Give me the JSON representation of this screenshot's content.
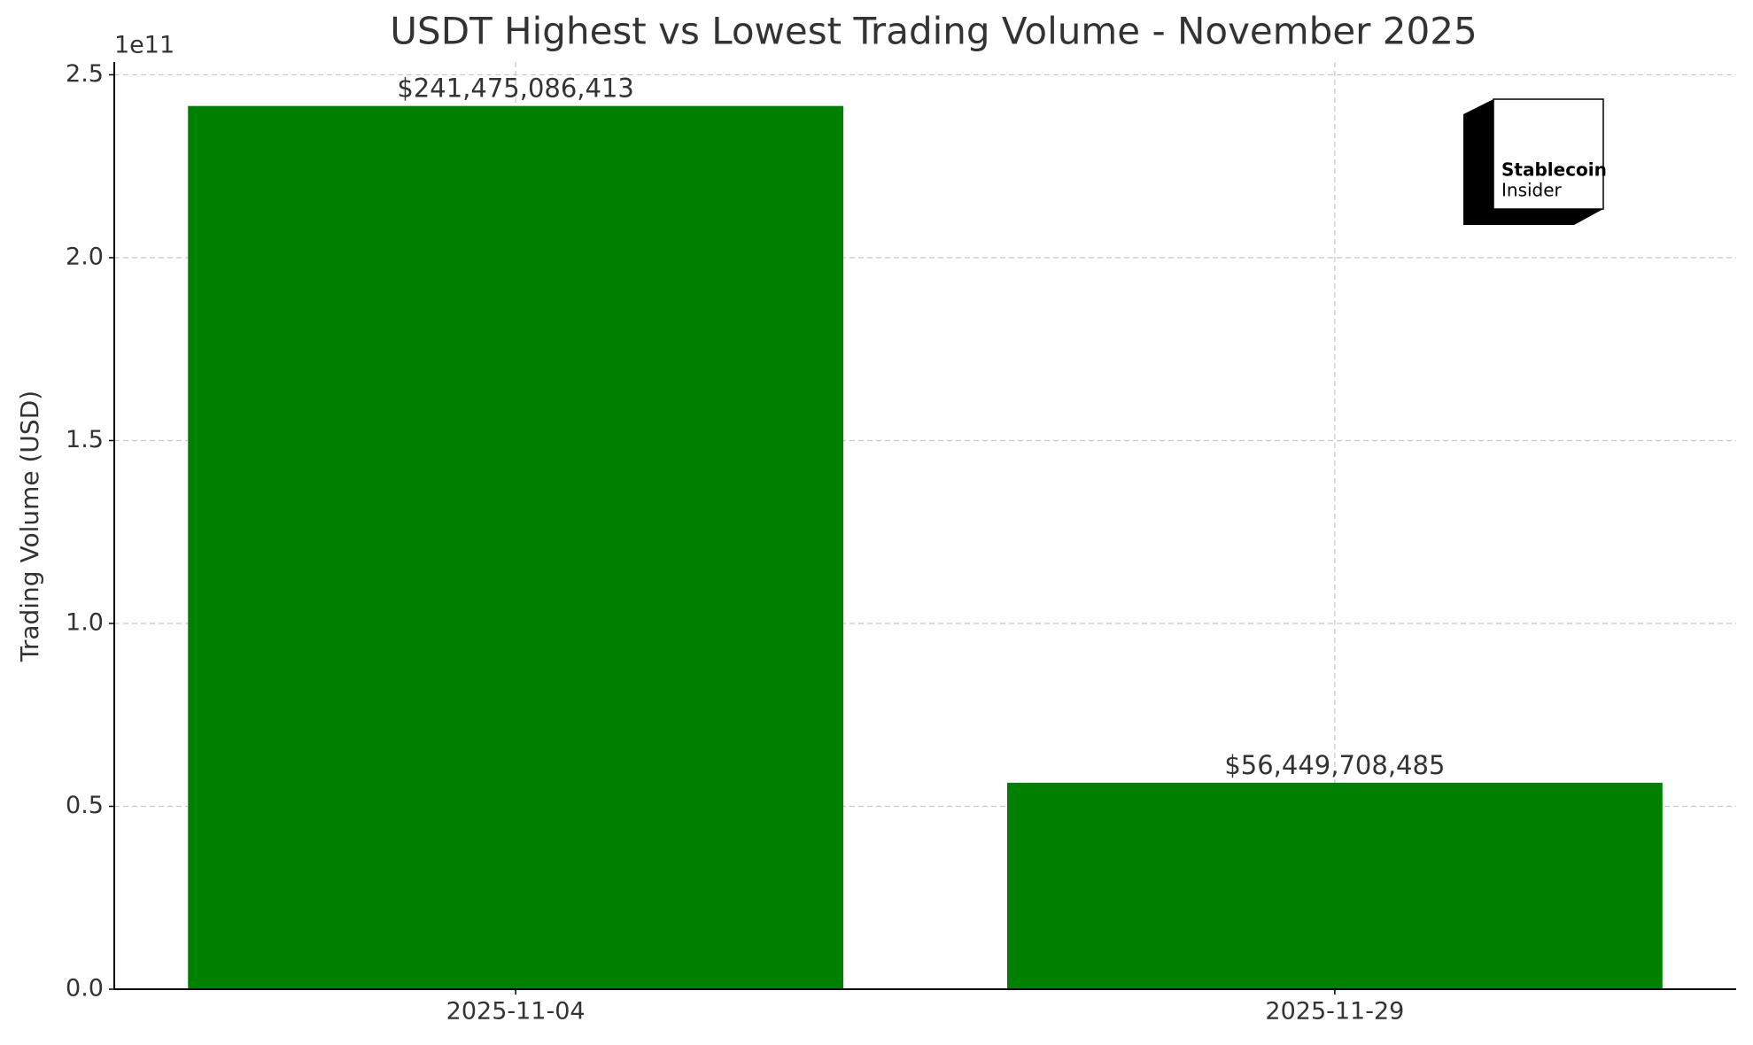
{
  "chart_data": {
    "type": "bar",
    "title": "USDT Highest vs Lowest Trading Volume - November 2025",
    "y_label": "Trading Volume (USD)",
    "y_offset_label": "1e11",
    "categories": [
      "2025-11-04",
      "2025-11-29"
    ],
    "values": [
      241475086413,
      56449708485
    ],
    "value_labels": [
      "$241,475,086,413",
      "$56,449,708,485"
    ],
    "color": "#008000",
    "ylim": [
      0,
      253500000000
    ],
    "yticks": [
      {
        "value": 0,
        "label": "0.0"
      },
      {
        "value": 50000000000,
        "label": "0.5"
      },
      {
        "value": 100000000000,
        "label": "1.0"
      },
      {
        "value": 150000000000,
        "label": "1.5"
      },
      {
        "value": 200000000000,
        "label": "2.0"
      },
      {
        "value": 250000000000,
        "label": "2.5"
      }
    ],
    "grid": true,
    "logo_text": [
      "Stablecoin",
      "Insider"
    ]
  }
}
